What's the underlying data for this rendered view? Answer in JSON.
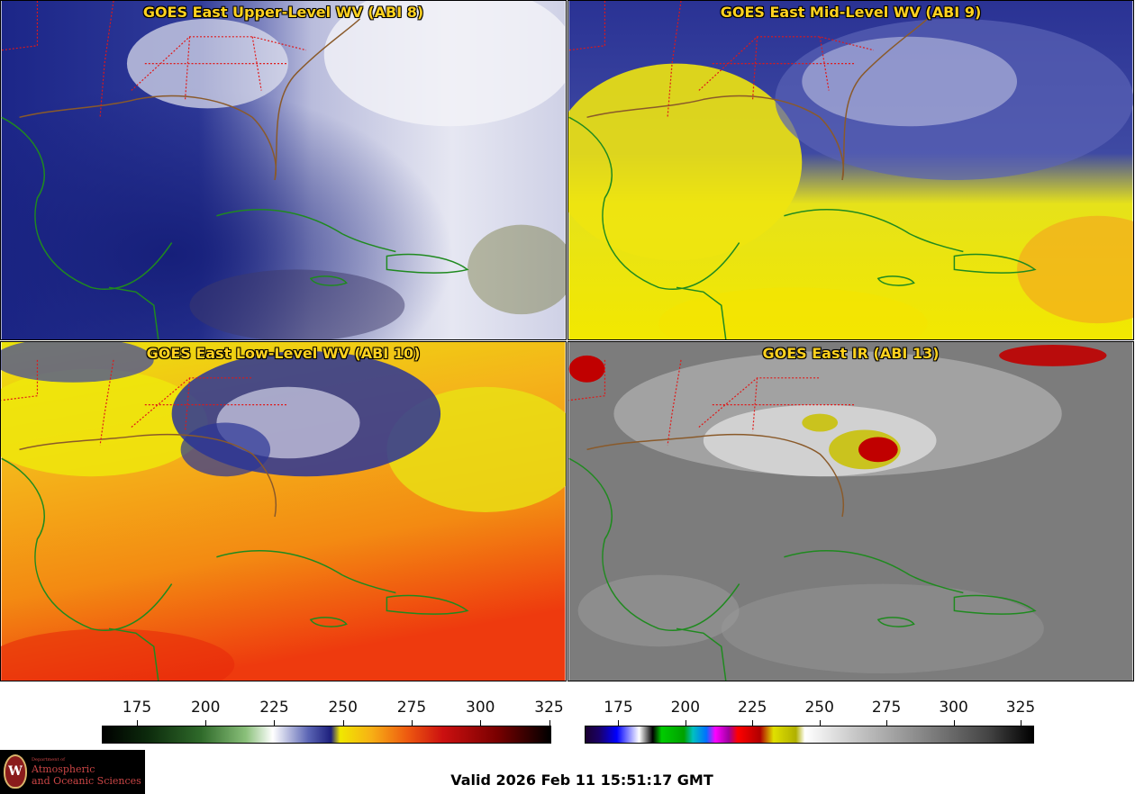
{
  "panels": [
    {
      "title": "GOES East Upper-Level WV (ABI 8)"
    },
    {
      "title": "GOES East Mid-Level WV (ABI 9)"
    },
    {
      "title": "GOES East Low-Level WV (ABI 10)"
    },
    {
      "title": "GOES East IR (ABI 13)"
    }
  ],
  "colorbar_wv": {
    "ticks": [
      "175",
      "200",
      "225",
      "250",
      "275",
      "300",
      "325"
    ]
  },
  "colorbar_ir": {
    "ticks": [
      "175",
      "200",
      "225",
      "250",
      "275",
      "300",
      "325"
    ]
  },
  "logo": {
    "dept": "Department of",
    "line1": "Atmospheric",
    "line2": "and Oceanic Sciences",
    "seal": "W"
  },
  "valid_time": "Valid 2026 Feb 11 15:51:17 GMT",
  "colors": {
    "coast": "#1f8a1f",
    "state_border": "#e01818",
    "title": "#ffd21f"
  }
}
